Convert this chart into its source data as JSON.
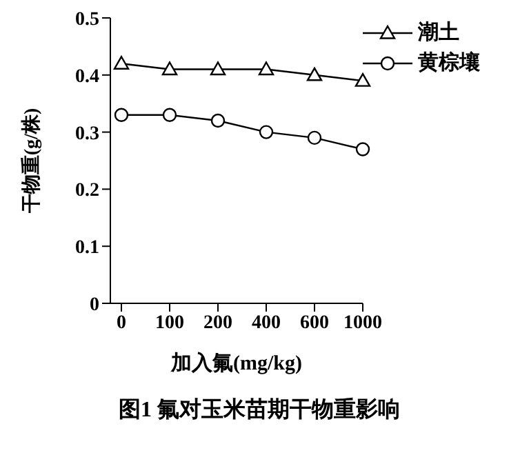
{
  "chart_data": {
    "type": "line",
    "title": "图1  氟对玉米苗期干物重影响",
    "xlabel": "加入氟(mg/kg)",
    "ylabel": "干物重(g/株)",
    "categories": [
      "0",
      "100",
      "200",
      "400",
      "600",
      "1000"
    ],
    "series": [
      {
        "name": "潮土",
        "color": "#000000",
        "marker": "triangle",
        "values": [
          0.42,
          0.41,
          0.41,
          0.41,
          0.4,
          0.39
        ]
      },
      {
        "name": "黄棕壤",
        "color": "#000000",
        "marker": "circle",
        "values": [
          0.33,
          0.33,
          0.32,
          0.3,
          0.29,
          0.27
        ]
      }
    ],
    "ylim": [
      0,
      0.5
    ],
    "yticks": [
      0,
      0.1,
      0.2,
      0.3,
      0.4,
      0.5
    ],
    "grid": false,
    "legend": "top right",
    "line_style": "solid"
  }
}
